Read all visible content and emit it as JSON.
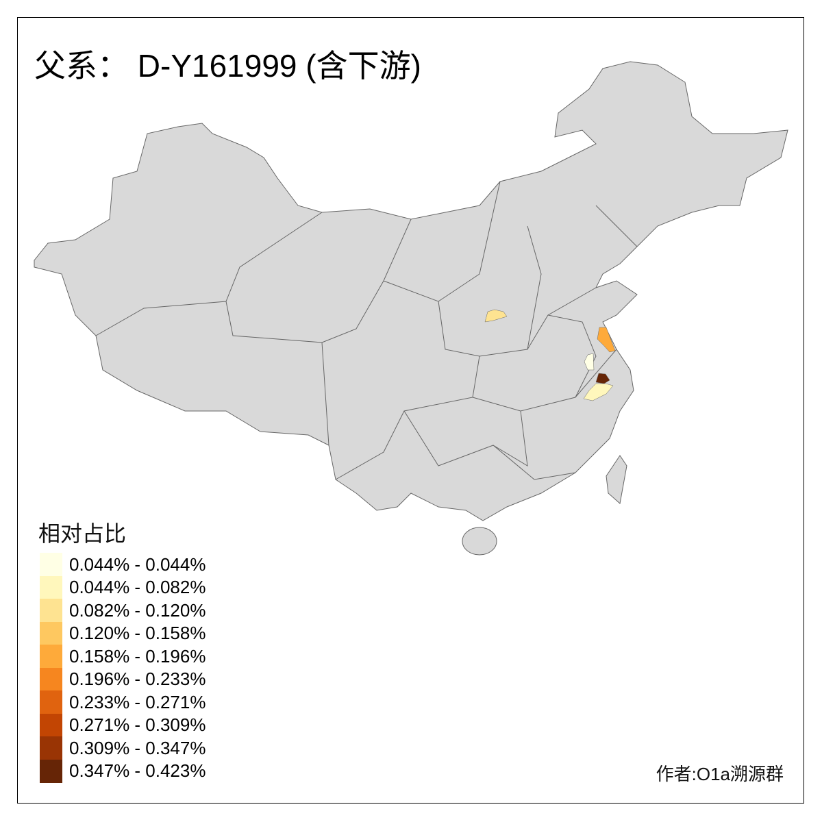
{
  "title": "父系： D-Y161999 (含下游)",
  "legend": {
    "title": "相对占比",
    "items": [
      {
        "label": "0.044% - 0.044%",
        "color": "#FFFFE5"
      },
      {
        "label": "0.044% - 0.082%",
        "color": "#FFF7BC"
      },
      {
        "label": "0.082% - 0.120%",
        "color": "#FEE391"
      },
      {
        "label": "0.120% - 0.158%",
        "color": "#FEC860"
      },
      {
        "label": "0.158% - 0.196%",
        "color": "#FEAA3A"
      },
      {
        "label": "0.196% - 0.233%",
        "color": "#F6861F"
      },
      {
        "label": "0.233% - 0.271%",
        "color": "#E0630F"
      },
      {
        "label": "0.271% - 0.309%",
        "color": "#C24503"
      },
      {
        "label": "0.309% - 0.347%",
        "color": "#993404"
      },
      {
        "label": "0.347% - 0.423%",
        "color": "#662506"
      }
    ]
  },
  "map": {
    "base_color": "#D9D9D9",
    "border_color": "#666666"
  },
  "credit": "作者:O1a溯源群"
}
